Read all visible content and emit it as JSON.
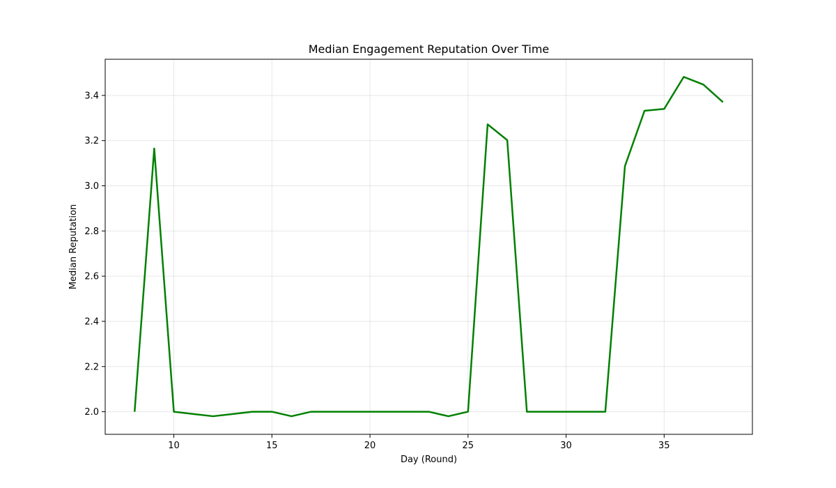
{
  "chart_data": {
    "type": "line",
    "title": "Median Engagement Reputation Over Time",
    "xlabel": "Day (Round)",
    "ylabel": "Median Reputation",
    "xlim": [
      6.5,
      39.5
    ],
    "ylim": [
      1.9,
      3.56
    ],
    "x_ticks": [
      10,
      15,
      20,
      25,
      30,
      35
    ],
    "y_ticks": [
      2.0,
      2.2,
      2.4,
      2.6,
      2.8,
      3.0,
      3.2,
      3.4
    ],
    "x_tick_labels": [
      "10",
      "15",
      "20",
      "25",
      "30",
      "35"
    ],
    "y_tick_labels": [
      "2.0",
      "2.2",
      "2.4",
      "2.6",
      "2.8",
      "3.0",
      "3.2",
      "3.4"
    ],
    "grid": true,
    "series": [
      {
        "color": "#008000",
        "x": [
          8,
          9,
          10,
          11,
          12,
          13,
          14,
          15,
          16,
          17,
          18,
          19,
          20,
          21,
          22,
          23,
          24,
          25,
          26,
          27,
          28,
          29,
          30,
          31,
          32,
          33,
          34,
          35,
          36,
          37,
          38
        ],
        "y": [
          2.0,
          3.165,
          2.0,
          1.99,
          1.98,
          1.99,
          2.0,
          2.0,
          1.98,
          2.0,
          2.0,
          2.0,
          2.0,
          2.0,
          2.0,
          2.0,
          1.98,
          2.0,
          3.272,
          3.202,
          2.0,
          2.0,
          2.0,
          2.0,
          2.0,
          3.087,
          3.332,
          3.34,
          3.482,
          3.448,
          3.37
        ]
      }
    ]
  }
}
